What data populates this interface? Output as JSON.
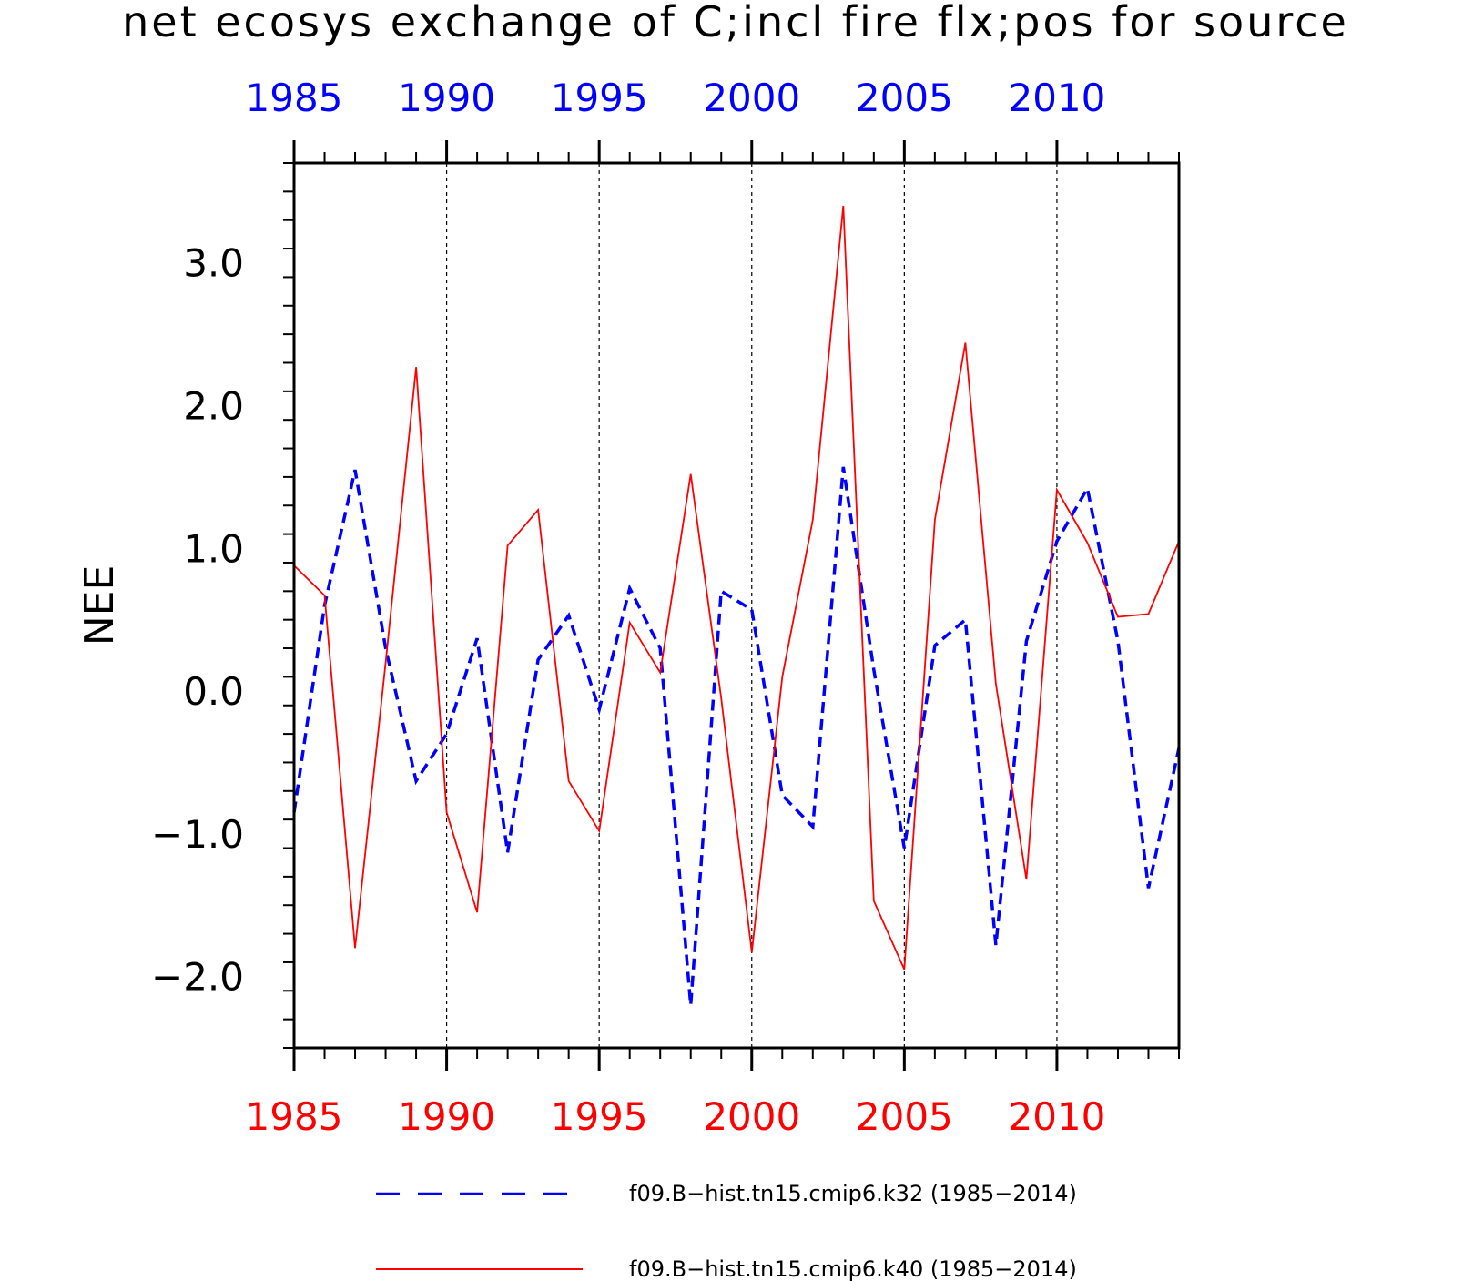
{
  "chart_data": {
    "type": "line",
    "title": "net ecosys exchange of C;incl fire flx;pos for source",
    "xlabel": "",
    "ylabel": "NEE",
    "xlim": [
      1985,
      2014
    ],
    "ylim": [
      -2.5,
      3.7
    ],
    "x_tick_labels": [
      "1985",
      "1990",
      "1995",
      "2000",
      "2005",
      "2010"
    ],
    "y_tick_labels": [
      "3.0",
      "2.0",
      "1.0",
      "0.0",
      "−1.0",
      "−2.0"
    ],
    "y_tick_values": [
      3.0,
      2.0,
      1.0,
      0.0,
      -1.0,
      -2.0
    ],
    "top_axis_color": "#0000ff",
    "bottom_axis_color": "#ff0000",
    "vertical_grid": true,
    "legend_position": "bottom",
    "x": [
      1985,
      1986,
      1987,
      1988,
      1989,
      1990,
      1991,
      1992,
      1993,
      1994,
      1995,
      1996,
      1997,
      1998,
      1999,
      2000,
      2001,
      2002,
      2003,
      2004,
      2005,
      2006,
      2007,
      2008,
      2009,
      2010,
      2011,
      2012,
      2013,
      2014
    ],
    "series": [
      {
        "name": "f09.B−hist.tn15.cmip6.k32 (1985−2014)",
        "color": "#0000ff",
        "style": "dashed",
        "values": [
          -0.85,
          0.6,
          1.55,
          0.3,
          -0.63,
          -0.3,
          0.37,
          -1.13,
          0.22,
          0.53,
          -0.13,
          0.72,
          0.3,
          -2.2,
          0.7,
          0.57,
          -0.73,
          -0.95,
          1.57,
          0.15,
          -1.1,
          0.32,
          0.5,
          -1.78,
          0.35,
          1.05,
          1.42,
          0.35,
          -1.38,
          -0.4
        ]
      },
      {
        "name": "f09.B−hist.tn15.cmip6.k40 (1985−2014)",
        "color": "#ff0000",
        "style": "solid",
        "values": [
          0.88,
          0.67,
          -1.8,
          0.2,
          2.27,
          -0.85,
          -1.55,
          1.02,
          1.27,
          -0.63,
          -0.98,
          0.48,
          0.13,
          1.52,
          -0.05,
          -1.83,
          0.1,
          1.2,
          3.4,
          -1.47,
          -1.95,
          1.2,
          2.44,
          0.05,
          -1.32,
          1.41,
          1.04,
          0.52,
          0.54,
          1.05
        ]
      }
    ]
  }
}
